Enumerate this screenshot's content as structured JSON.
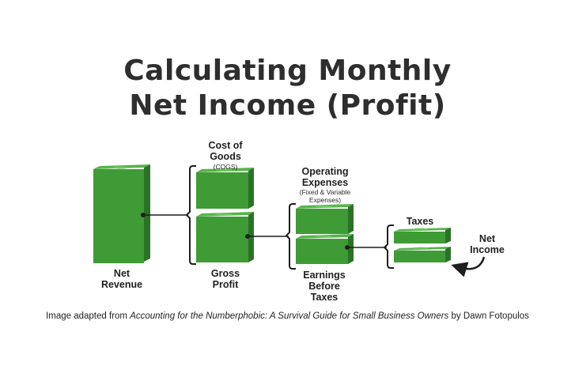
{
  "title": {
    "line1": "Calculating Monthly",
    "line2": "Net Income (Profit)"
  },
  "diagram": {
    "net_revenue": {
      "line1": "Net",
      "line2": "Revenue"
    },
    "cogs": {
      "line1": "Cost of",
      "line2": "Goods",
      "abbr": "(COGS)"
    },
    "gross_profit": {
      "line1": "Gross",
      "line2": "Profit"
    },
    "operating_expenses": {
      "line1": "Operating",
      "line2": "Expenses",
      "note1": "(Fixed & Variable",
      "note2": "Expenses)"
    },
    "earnings_before_taxes": {
      "line1": "Earnings",
      "line2": "Before",
      "line3": "Taxes"
    },
    "taxes": {
      "label": "Taxes"
    },
    "net_income": {
      "line1": "Net",
      "line2": "Income"
    }
  },
  "colors": {
    "money_front": "#3f9b36",
    "money_side": "#2a7326",
    "money_top": "#57b44b",
    "money_mark": "#6cc75e",
    "bracket": "#1e1e1e"
  },
  "caption": {
    "prefix": "Image adapted from ",
    "book": "Accounting for the Numberphobic: A Survival Guide for Small Business Owners",
    "suffix": " by Dawn Fotopulos"
  }
}
